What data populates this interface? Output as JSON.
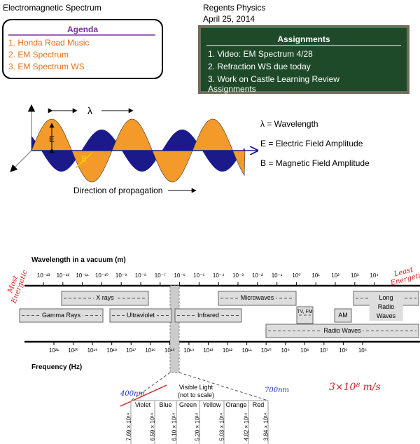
{
  "header": {
    "title": "Electromagnetic Spectrum",
    "course": "Regents Physics",
    "date": "April 25, 2014"
  },
  "agenda": {
    "title": "Agenda",
    "items": [
      "1. Honda Road Music",
      "2. EM Spectrum",
      "3. EM Spectrum WS"
    ]
  },
  "assignments": {
    "title": "Assignments",
    "items": [
      "1. Video: EM Spectrum 4/28",
      "2. Refraction WS due today",
      "3. Work on Castle Learning Review Assignments"
    ]
  },
  "wave_diagram": {
    "lambda": "λ",
    "e": "E",
    "b": "B",
    "propagation": "Direction of propagation",
    "key": [
      "λ = Wavelength",
      "E = Electric Field Amplitude",
      "B = Magnetic Field Amplitude"
    ]
  },
  "spectrum": {
    "wavelength_title": "Wavelength in a vacuum (m)",
    "wavelength_ticks": [
      "10⁻¹³",
      "10⁻¹²",
      "10⁻¹¹",
      "10⁻¹⁰",
      "10⁻⁹",
      "10⁻⁸",
      "10⁻⁷",
      "10⁻⁶",
      "10⁻⁵",
      "10⁻⁴",
      "10⁻³",
      "10⁻²",
      "10⁻¹",
      "10⁰",
      "10¹",
      "10²",
      "10³",
      "10⁴"
    ],
    "bands": [
      "X rays",
      "Microwaves",
      "Long Radio Waves",
      "Gamma Rays",
      "Ultraviolet",
      "Infrared",
      "TV, FM",
      "AM",
      "Radio Waves"
    ],
    "frequency_ticks": [
      "10²¹",
      "10²⁰",
      "10¹⁹",
      "10¹⁸",
      "10¹⁷",
      "10¹⁶",
      "10¹⁵",
      "10¹⁴",
      "10¹³",
      "10¹²",
      "10¹¹",
      "10¹⁰",
      "10⁹",
      "10⁸",
      "10⁷",
      "10⁶",
      "10⁵"
    ],
    "frequency_title": "Frequency (Hz)",
    "visible": {
      "title": "Visible Light",
      "subtitle": "(not to scale)",
      "colors": [
        "Violet",
        "Blue",
        "Green",
        "Yellow",
        "Orange",
        "Red"
      ],
      "frequencies": [
        "7.69 × 10¹⁴",
        "6.59 × 10¹⁴",
        "6.10 × 10¹⁴",
        "5.20 × 10¹⁴",
        "5.03 × 10¹⁴",
        "4.82 × 10¹⁴",
        "3.84 × 10¹⁴"
      ]
    }
  },
  "annotations": {
    "most": "Most Energetic",
    "least": "Least Energetic",
    "nm400": "400nm",
    "nm700": "700nm",
    "speed": "3×10⁸ m/s"
  }
}
